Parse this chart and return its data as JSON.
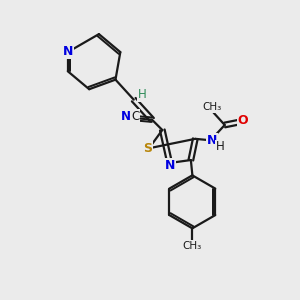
{
  "bg_color": "#ebebeb",
  "bond_color": "#1a1a1a",
  "N_color": "#0000e0",
  "S_color": "#b8860b",
  "O_color": "#e00000",
  "H_color": "#2e8b57",
  "figsize": [
    3.0,
    3.0
  ],
  "dpi": 100,
  "xlim": [
    0,
    10
  ],
  "ylim": [
    0,
    10
  ]
}
